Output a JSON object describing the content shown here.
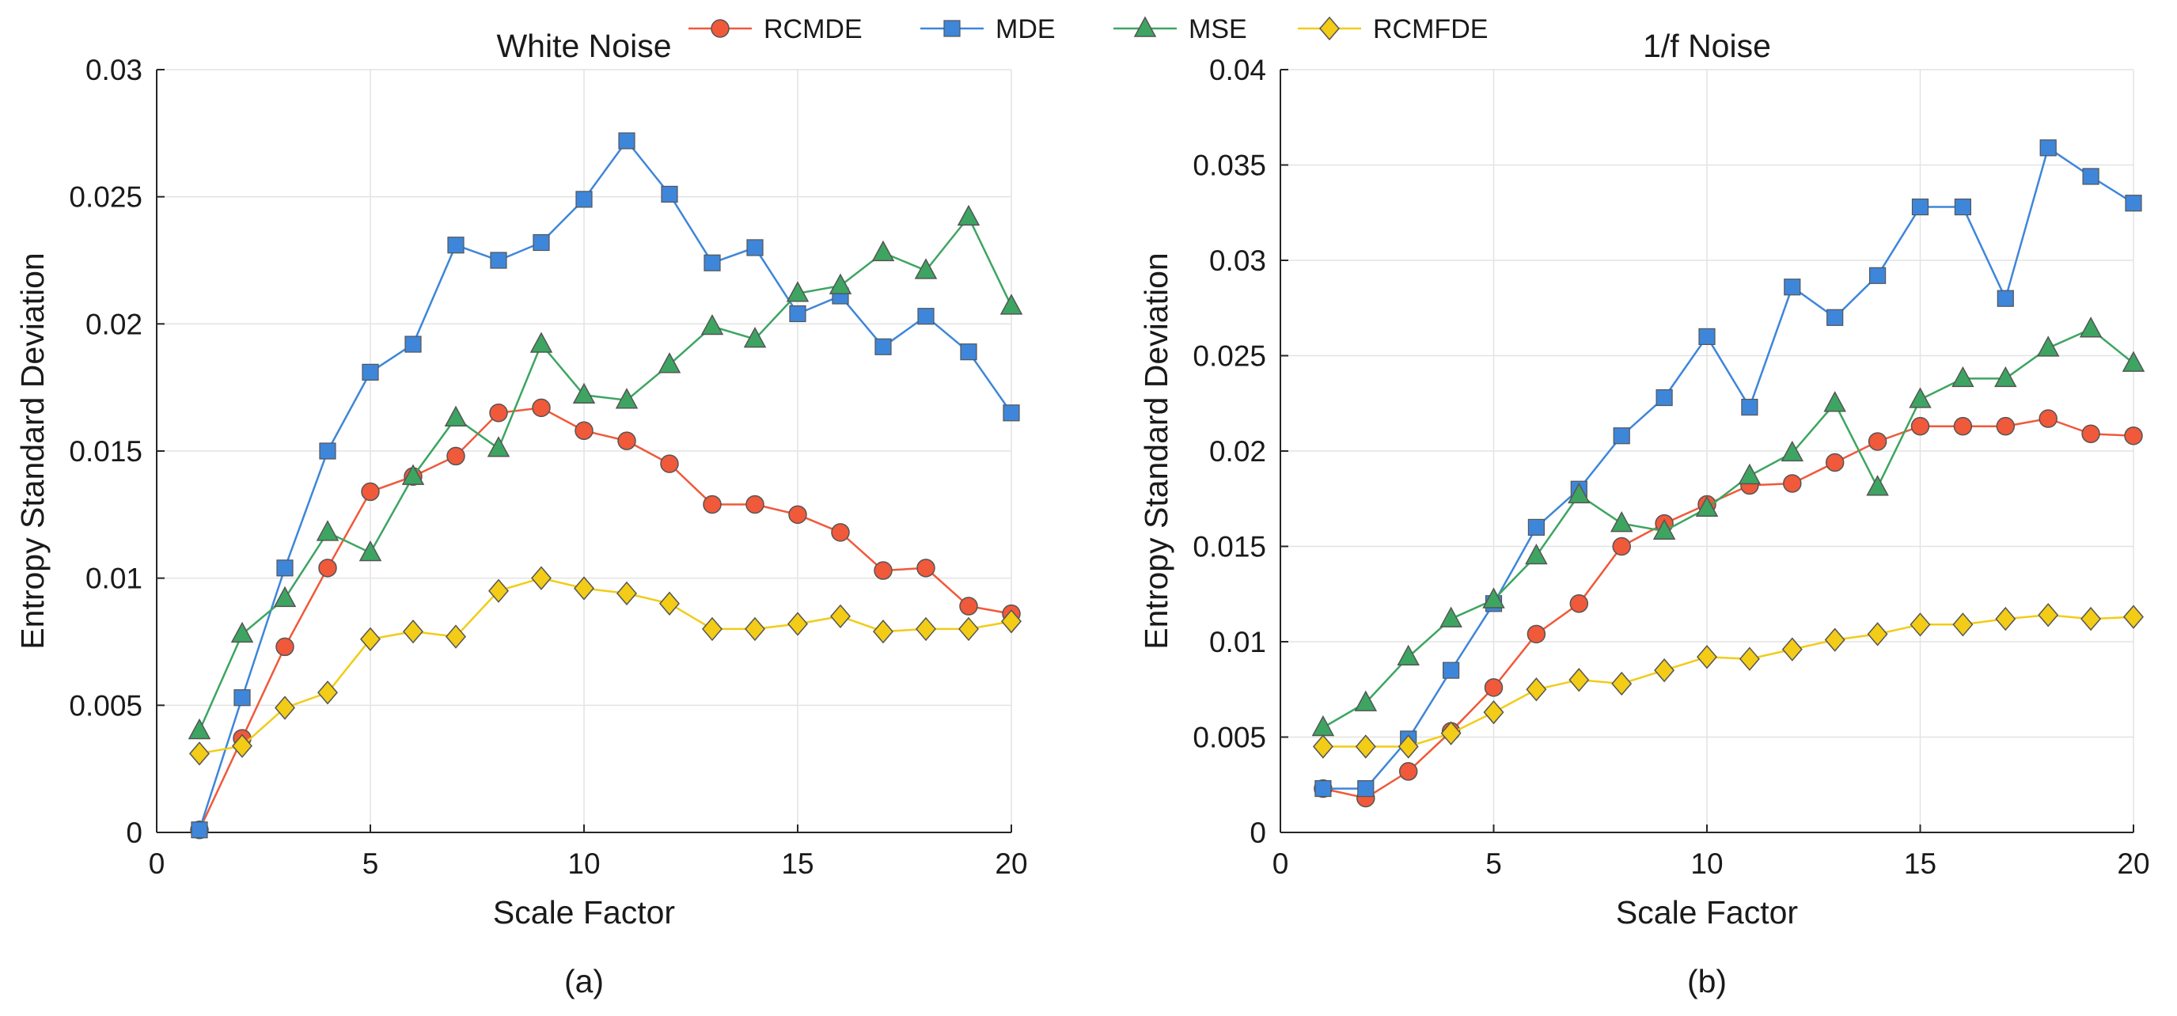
{
  "legend": {
    "entries": [
      {
        "name": "RCMDE",
        "color": "#F0593A",
        "marker": "circle"
      },
      {
        "name": "MDE",
        "color": "#3E86D9",
        "marker": "square"
      },
      {
        "name": "MSE",
        "color": "#3DA561",
        "marker": "triangle"
      },
      {
        "name": "RCMFDE",
        "color": "#F2CC17",
        "marker": "diamond"
      }
    ]
  },
  "chart_data": [
    {
      "type": "line",
      "title": "White Noise",
      "caption": "(a)",
      "xlabel": "Scale Factor",
      "ylabel": "Entropy Standard Deviation",
      "xlim": [
        0,
        20
      ],
      "ylim": [
        0,
        0.03
      ],
      "xticks": [
        0,
        5,
        10,
        15,
        20
      ],
      "xtick_labels": [
        "0",
        "5",
        "10",
        "15",
        "20"
      ],
      "yticks": [
        0,
        0.005,
        0.01,
        0.015,
        0.02,
        0.025,
        0.03
      ],
      "ytick_labels": [
        "0",
        "0.005",
        "0.01",
        "0.015",
        "0.02",
        "0.025",
        "0.03"
      ],
      "grid": true,
      "x": [
        1,
        2,
        3,
        4,
        5,
        6,
        7,
        8,
        9,
        10,
        11,
        12,
        13,
        14,
        15,
        16,
        17,
        18,
        19,
        20
      ],
      "series": [
        {
          "name": "RCMDE",
          "values": [
            0.0001,
            0.0037,
            0.0073,
            0.0104,
            0.0134,
            0.014,
            0.0148,
            0.0165,
            0.0167,
            0.0158,
            0.0154,
            0.0145,
            0.0129,
            0.0129,
            0.0125,
            0.0118,
            0.0103,
            0.0104,
            0.0089,
            0.0086
          ]
        },
        {
          "name": "MDE",
          "values": [
            0.0001,
            0.0053,
            0.0104,
            0.015,
            0.0181,
            0.0192,
            0.0231,
            0.0225,
            0.0232,
            0.0249,
            0.0272,
            0.0251,
            0.0224,
            0.023,
            0.0204,
            0.0211,
            0.0191,
            0.0203,
            0.0189,
            0.0165
          ]
        },
        {
          "name": "MSE",
          "values": [
            0.004,
            0.0078,
            0.0092,
            0.0118,
            0.011,
            0.014,
            0.0163,
            0.0151,
            0.0192,
            0.0172,
            0.017,
            0.0184,
            0.0199,
            0.0194,
            0.0212,
            0.0215,
            0.0228,
            0.0221,
            0.0242,
            0.0207
          ]
        },
        {
          "name": "RCMFDE",
          "values": [
            0.0031,
            0.0034,
            0.0049,
            0.0055,
            0.0076,
            0.0079,
            0.0077,
            0.0095,
            0.01,
            0.0096,
            0.0094,
            0.009,
            0.008,
            0.008,
            0.0082,
            0.0085,
            0.0079,
            0.008,
            0.008,
            0.0083
          ]
        }
      ]
    },
    {
      "type": "line",
      "title": "1/f Noise",
      "caption": "(b)",
      "xlabel": "Scale Factor",
      "ylabel": "Entropy Standard Deviation",
      "xlim": [
        0,
        20
      ],
      "ylim": [
        0,
        0.04
      ],
      "xticks": [
        0,
        5,
        10,
        15,
        20
      ],
      "xtick_labels": [
        "0",
        "5",
        "10",
        "15",
        "20"
      ],
      "yticks": [
        0,
        0.005,
        0.01,
        0.015,
        0.02,
        0.025,
        0.03,
        0.035,
        0.04
      ],
      "ytick_labels": [
        "0",
        "0.005",
        "0.01",
        "0.015",
        "0.02",
        "0.025",
        "0.03",
        "0.035",
        "0.04"
      ],
      "grid": true,
      "x": [
        1,
        2,
        3,
        4,
        5,
        6,
        7,
        8,
        9,
        10,
        11,
        12,
        13,
        14,
        15,
        16,
        17,
        18,
        19,
        20
      ],
      "series": [
        {
          "name": "RCMDE",
          "values": [
            0.0023,
            0.0018,
            0.0032,
            0.0053,
            0.0076,
            0.0104,
            0.012,
            0.015,
            0.0162,
            0.0172,
            0.0182,
            0.0183,
            0.0194,
            0.0205,
            0.0213,
            0.0213,
            0.0213,
            0.0217,
            0.0209,
            0.0208
          ]
        },
        {
          "name": "MDE",
          "values": [
            0.0023,
            0.0023,
            0.0049,
            0.0085,
            0.012,
            0.016,
            0.018,
            0.0208,
            0.0228,
            0.026,
            0.0223,
            0.0286,
            0.027,
            0.0292,
            0.0328,
            0.0328,
            0.028,
            0.0359,
            0.0344,
            0.033
          ]
        },
        {
          "name": "MSE",
          "values": [
            0.0055,
            0.0068,
            0.0092,
            0.0112,
            0.0122,
            0.0145,
            0.0177,
            0.0162,
            0.0158,
            0.017,
            0.0187,
            0.0199,
            0.0225,
            0.0181,
            0.0227,
            0.0238,
            0.0238,
            0.0254,
            0.0264,
            0.0246
          ]
        },
        {
          "name": "RCMFDE",
          "values": [
            0.0045,
            0.0045,
            0.0045,
            0.0052,
            0.0063,
            0.0075,
            0.008,
            0.0078,
            0.0085,
            0.0092,
            0.0091,
            0.0096,
            0.0101,
            0.0104,
            0.0109,
            0.0109,
            0.0112,
            0.0114,
            0.0112,
            0.0113
          ]
        }
      ]
    }
  ]
}
